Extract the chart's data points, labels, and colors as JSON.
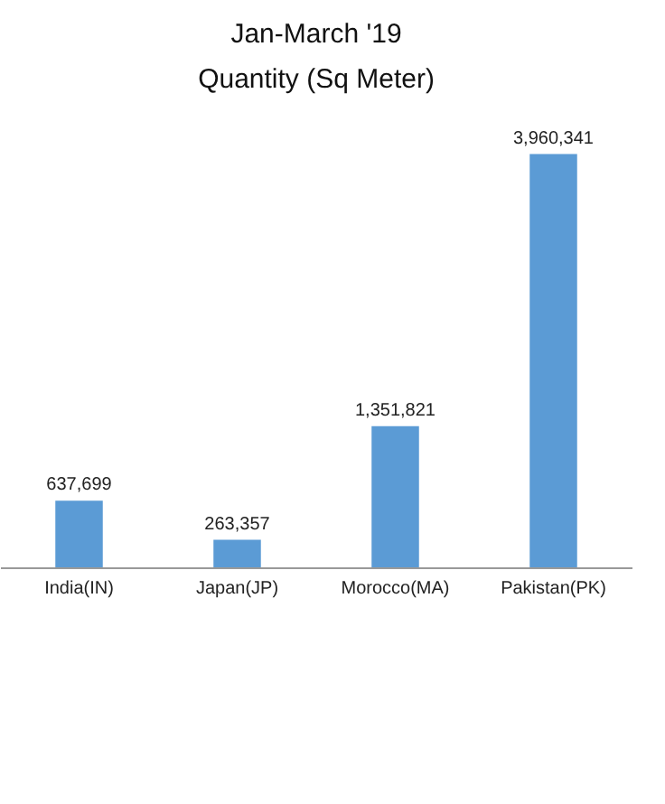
{
  "chart_data": {
    "type": "bar",
    "title": "Jan-March '19",
    "subtitle": "Quantity (Sq Meter)",
    "categories": [
      "India(IN)",
      "Japan(JP)",
      "Morocco(MA)",
      "Pakistan(PK)"
    ],
    "values": [
      637699,
      263357,
      1351821,
      3960341
    ],
    "value_labels": [
      "637,699",
      "263,357",
      "1,351,821",
      "3,960,341"
    ],
    "color": "#5b9bd5"
  }
}
